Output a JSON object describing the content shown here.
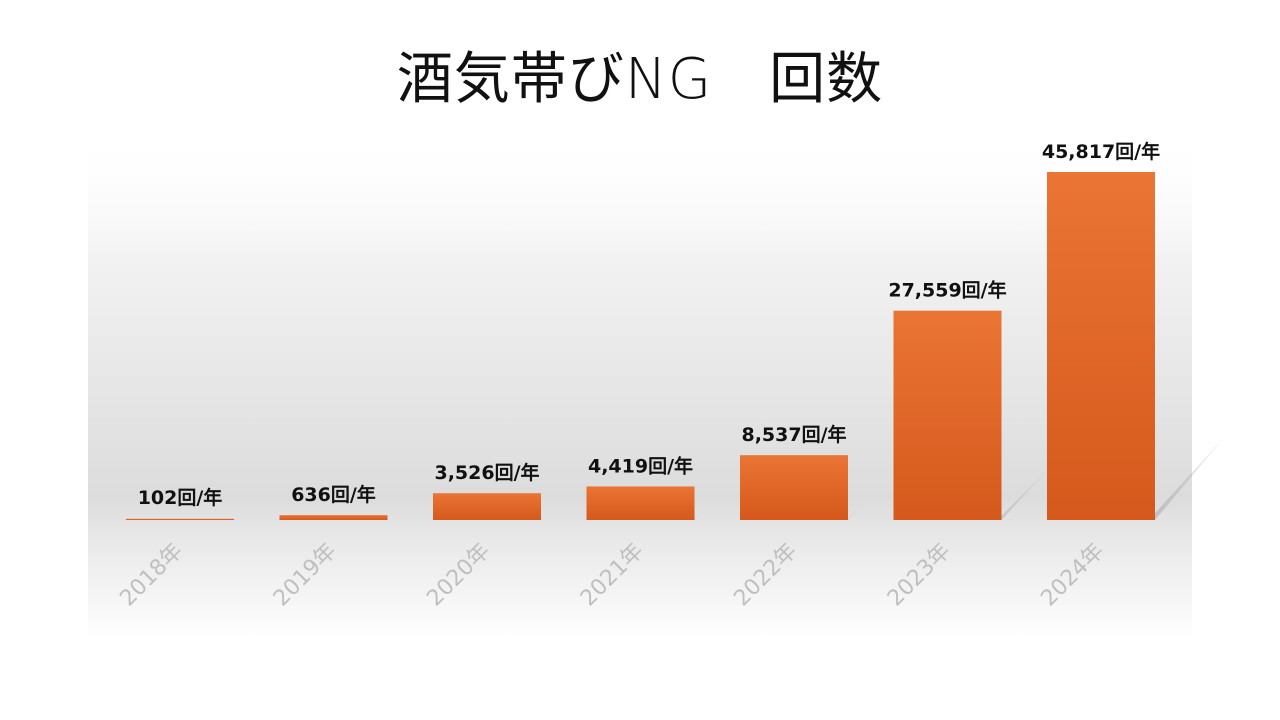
{
  "title": "酒気帯びNG　回数",
  "chart_data": {
    "type": "bar",
    "categories": [
      "2018年",
      "2019年",
      "2020年",
      "2021年",
      "2022年",
      "2023年",
      "2024年"
    ],
    "values": [
      102,
      636,
      3526,
      4419,
      8537,
      27559,
      45817
    ],
    "data_labels": [
      "102回/年",
      "636回/年",
      "3,526回/年",
      "4,419回/年",
      "8,537回/年",
      "27,559回/年",
      "45,817回/年"
    ],
    "title": "酒気帯びNG　回数",
    "xlabel": "",
    "ylabel": "",
    "ylim": [
      0,
      48000
    ],
    "grid": false,
    "legend": "none",
    "bar_color": "#E8702F",
    "bar_color_dark": "#D2581A",
    "tick_label_color": "#BFBFBF"
  }
}
